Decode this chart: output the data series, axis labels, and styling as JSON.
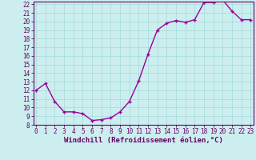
{
  "hours": [
    0,
    1,
    2,
    3,
    4,
    5,
    6,
    7,
    8,
    9,
    10,
    11,
    12,
    13,
    14,
    15,
    16,
    17,
    18,
    19,
    20,
    21,
    22,
    23
  ],
  "values": [
    12.0,
    12.8,
    10.7,
    9.5,
    9.5,
    9.3,
    8.5,
    8.6,
    8.8,
    9.5,
    10.7,
    13.1,
    16.2,
    19.0,
    19.8,
    20.1,
    19.9,
    20.2,
    22.2,
    22.2,
    22.5,
    21.2,
    20.2,
    20.2
  ],
  "xlim": [
    0,
    23
  ],
  "ylim": [
    8,
    22
  ],
  "yticks": [
    8,
    9,
    10,
    11,
    12,
    13,
    14,
    15,
    16,
    17,
    18,
    19,
    20,
    21,
    22
  ],
  "xticks": [
    0,
    1,
    2,
    3,
    4,
    5,
    6,
    7,
    8,
    9,
    10,
    11,
    12,
    13,
    14,
    15,
    16,
    17,
    18,
    19,
    20,
    21,
    22,
    23
  ],
  "line_color": "#990099",
  "marker": "+",
  "bg_color": "#cceeee",
  "grid_color": "#aadddd",
  "axis_color": "#660066",
  "xlabel": "Windchill (Refroidissement éolien,°C)",
  "xlabel_color": "#660066",
  "tick_color": "#660066",
  "linewidth": 1.0,
  "markersize": 3.5,
  "markeredgewidth": 1.0,
  "tick_fontsize": 5.5,
  "xlabel_fontsize": 6.5
}
